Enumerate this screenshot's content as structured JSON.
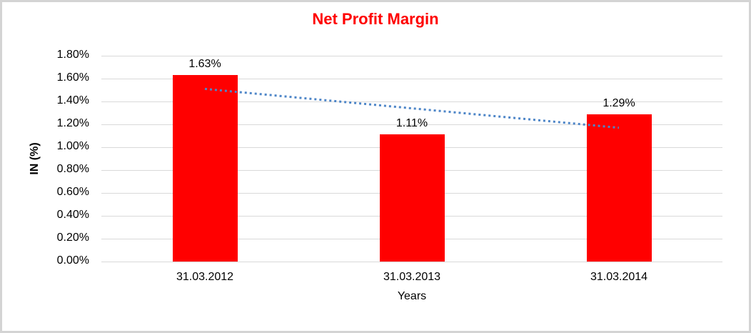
{
  "chart_data": {
    "type": "bar",
    "title": "Net Profit Margin",
    "categories": [
      "31.03.2012",
      "31.03.2013",
      "31.03.2014"
    ],
    "values": [
      1.63,
      1.11,
      1.29
    ],
    "value_labels": [
      "1.63%",
      "1.11%",
      "1.29%"
    ],
    "xlabel": "Years",
    "ylabel": "IN (%)",
    "ylim": [
      0,
      1.8
    ],
    "ytick_step": 0.2,
    "ytick_labels": [
      "0.00%",
      "0.20%",
      "0.40%",
      "0.60%",
      "0.80%",
      "1.00%",
      "1.20%",
      "1.40%",
      "1.60%",
      "1.80%"
    ],
    "grid": true,
    "legend_position": "none",
    "trendline": {
      "type": "linear",
      "style": "dotted",
      "start_value": 1.51,
      "end_value": 1.17
    },
    "colors": {
      "bar": "#ff0000",
      "title": "#ff0000",
      "gridline": "#d9d9d9",
      "trendline": "#4e86c8",
      "text": "#000000",
      "frame_border": "#d4d4d4"
    }
  }
}
